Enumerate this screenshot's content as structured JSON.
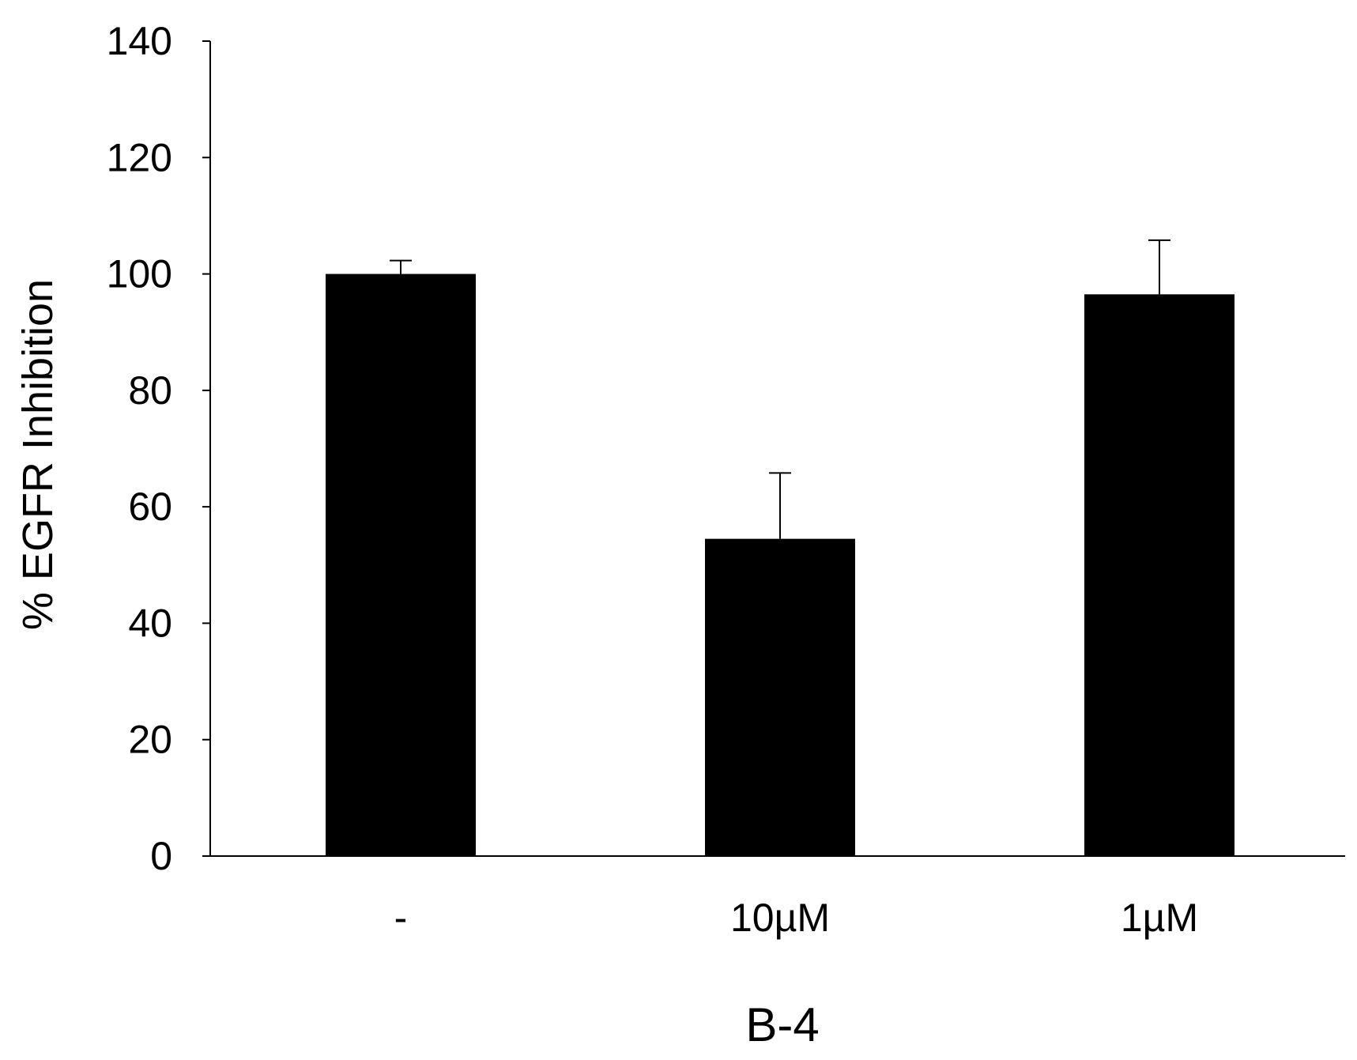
{
  "chart_data": {
    "type": "bar",
    "categories": [
      "-",
      "10µM",
      "1µM"
    ],
    "values": [
      100,
      54.5,
      96.5
    ],
    "error": [
      2.3,
      11.3,
      9.3
    ],
    "xlabel": "B-4",
    "ylabel": "% EGFR Inhibition",
    "ylim": [
      0,
      140
    ],
    "yticks": [
      0,
      20,
      40,
      60,
      80,
      100,
      120,
      140
    ],
    "grid": false,
    "legend": "none",
    "colors": {
      "bar": "#000000",
      "axis": "#000000",
      "background": "#ffffff"
    }
  }
}
